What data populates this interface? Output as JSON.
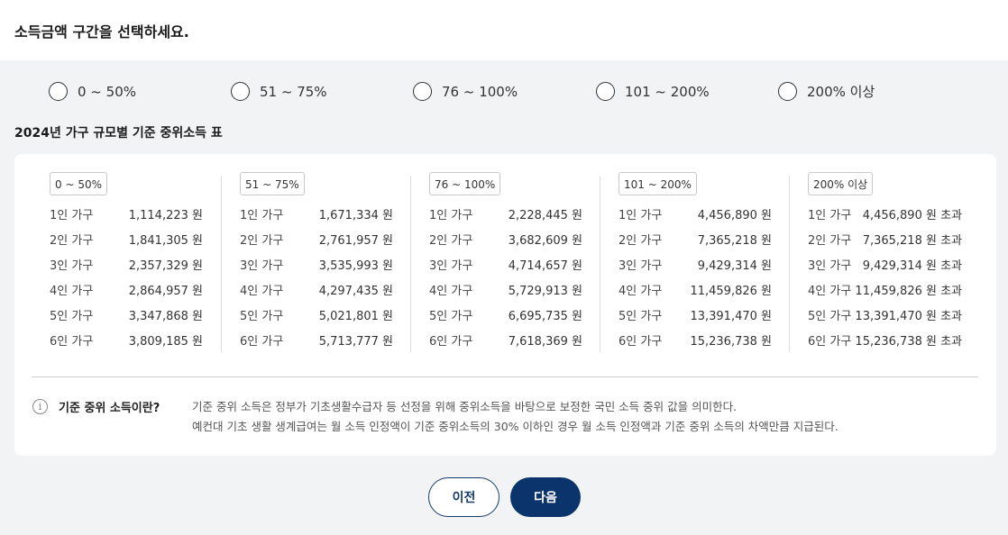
{
  "header": {
    "title": "소득금액 구간을 선택하세요."
  },
  "options": [
    {
      "label": "0 ~ 50%"
    },
    {
      "label": "51 ~ 75%"
    },
    {
      "label": "76 ~ 100%"
    },
    {
      "label": "101 ~ 200%"
    },
    {
      "label": "200% 이상"
    }
  ],
  "table_title": "2024년 가구 규모별 기준 중위소득 표",
  "columns": [
    {
      "label": "0 ~ 50%",
      "rows": [
        {
          "size": "1인 가구",
          "amount": "1,114,223 원"
        },
        {
          "size": "2인 가구",
          "amount": "1,841,305 원"
        },
        {
          "size": "3인 가구",
          "amount": "2,357,329 원"
        },
        {
          "size": "4인 가구",
          "amount": "2,864,957 원"
        },
        {
          "size": "5인 가구",
          "amount": "3,347,868 원"
        },
        {
          "size": "6인 가구",
          "amount": "3,809,185 원"
        }
      ]
    },
    {
      "label": "51 ~ 75%",
      "rows": [
        {
          "size": "1인 가구",
          "amount": "1,671,334 원"
        },
        {
          "size": "2인 가구",
          "amount": "2,761,957 원"
        },
        {
          "size": "3인 가구",
          "amount": "3,535,993 원"
        },
        {
          "size": "4인 가구",
          "amount": "4,297,435 원"
        },
        {
          "size": "5인 가구",
          "amount": "5,021,801 원"
        },
        {
          "size": "6인 가구",
          "amount": "5,713,777 원"
        }
      ]
    },
    {
      "label": "76 ~ 100%",
      "rows": [
        {
          "size": "1인 가구",
          "amount": "2,228,445 원"
        },
        {
          "size": "2인 가구",
          "amount": "3,682,609 원"
        },
        {
          "size": "3인 가구",
          "amount": "4,714,657 원"
        },
        {
          "size": "4인 가구",
          "amount": "5,729,913 원"
        },
        {
          "size": "5인 가구",
          "amount": "6,695,735 원"
        },
        {
          "size": "6인 가구",
          "amount": "7,618,369 원"
        }
      ]
    },
    {
      "label": "101 ~ 200%",
      "rows": [
        {
          "size": "1인 가구",
          "amount": "4,456,890 원"
        },
        {
          "size": "2인 가구",
          "amount": "7,365,218 원"
        },
        {
          "size": "3인 가구",
          "amount": "9,429,314 원"
        },
        {
          "size": "4인 가구",
          "amount": "11,459,826 원"
        },
        {
          "size": "5인 가구",
          "amount": "13,391,470 원"
        },
        {
          "size": "6인 가구",
          "amount": "15,236,738 원"
        }
      ]
    },
    {
      "label": "200% 이상",
      "rows": [
        {
          "size": "1인 가구",
          "amount": "4,456,890 원 초과"
        },
        {
          "size": "2인 가구",
          "amount": "7,365,218 원 초과"
        },
        {
          "size": "3인 가구",
          "amount": "9,429,314 원 초과"
        },
        {
          "size": "4인 가구",
          "amount": "11,459,826 원 초과"
        },
        {
          "size": "5인 가구",
          "amount": "13,391,470 원 초과"
        },
        {
          "size": "6인 가구",
          "amount": "15,236,738 원 초과"
        }
      ]
    }
  ],
  "info": {
    "icon": "info-icon",
    "title": "기준 중위 소득이란?",
    "line1": "기준 중위 소득은 정부가 기초생활수급자 등 선정을 위해 중위소득을 바탕으로 보정한 국민 소득 중위 값을 의미한다.",
    "line2": "예컨대 기초 생활 생계급여는 월 소득 인정액이 기준 중위소득의 30% 이하인 경우 월 소득 인정액과 기준 중위 소득의 차액만큼 지급된다."
  },
  "buttons": {
    "prev": "이전",
    "next": "다음"
  },
  "colors": {
    "primary": "#0b346c",
    "background": "#f2f3f5"
  }
}
